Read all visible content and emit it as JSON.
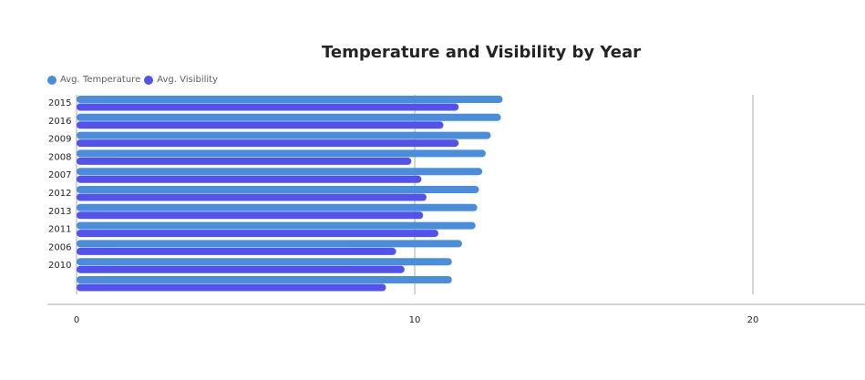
{
  "chart_data": {
    "type": "bar",
    "orientation": "horizontal",
    "title": "Temperature and Visibility by Year",
    "categories": [
      "2015",
      "2016",
      "2009",
      "2008",
      "2007",
      "2012",
      "2013",
      "2011",
      "2006",
      "2010",
      ""
    ],
    "series": [
      {
        "name": "Avg. Temperature",
        "color": "#4a8ddc",
        "values": [
          12.6,
          12.55,
          12.25,
          12.1,
          12.0,
          11.9,
          11.85,
          11.8,
          11.4,
          11.1,
          11.1
        ]
      },
      {
        "name": "Avg. Visibility",
        "color": "#5352ed",
        "values": [
          11.3,
          10.85,
          11.3,
          9.9,
          10.2,
          10.35,
          10.25,
          10.7,
          9.45,
          9.7,
          9.15
        ]
      }
    ],
    "xlim": [
      0,
      20
    ],
    "xticks": [
      0,
      10,
      20
    ],
    "xtick_labels": [
      "0",
      "10",
      "20"
    ],
    "grid": true,
    "legend_position": "top-left"
  }
}
